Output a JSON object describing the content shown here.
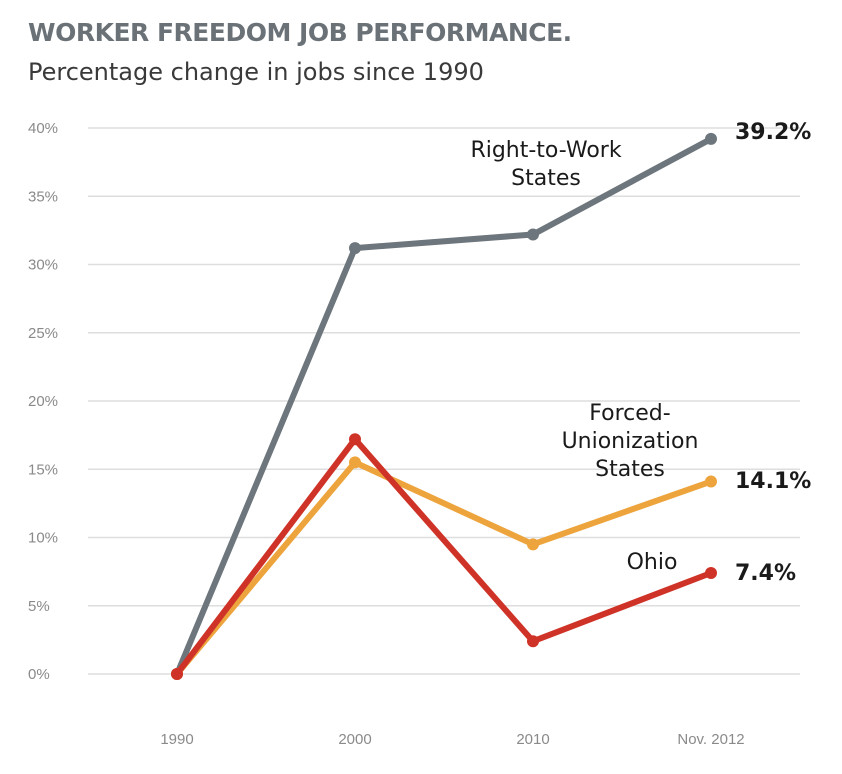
{
  "chart_data": {
    "type": "line",
    "title": "WORKER FREEDOM JOB PERFORMANCE.",
    "subtitle": "Percentage change in jobs since 1990",
    "xlabel": "",
    "ylabel": "",
    "categories": [
      "1990",
      "2000",
      "2010",
      "Nov. 2012"
    ],
    "y_ticks": [
      "0%",
      "5%",
      "10%",
      "15%",
      "20%",
      "25%",
      "30%",
      "35%",
      "40%"
    ],
    "ylim": [
      0,
      40
    ],
    "grid": true,
    "legend": "none (direct labels)",
    "series": [
      {
        "name_lines": [
          "Right-to-Work",
          "States"
        ],
        "values": [
          0,
          31.2,
          32.2,
          39.2
        ],
        "end_label": "39.2%",
        "color": "#6d767c"
      },
      {
        "name_lines": [
          "Forced-",
          "Unionization",
          "States"
        ],
        "values": [
          0,
          15.5,
          9.5,
          14.1
        ],
        "end_label": "14.1%",
        "color": "#eda43c"
      },
      {
        "name_lines": [
          "Ohio"
        ],
        "values": [
          0,
          17.2,
          2.4,
          7.4
        ],
        "end_label": "7.4%",
        "color": "#cf3328"
      }
    ]
  }
}
